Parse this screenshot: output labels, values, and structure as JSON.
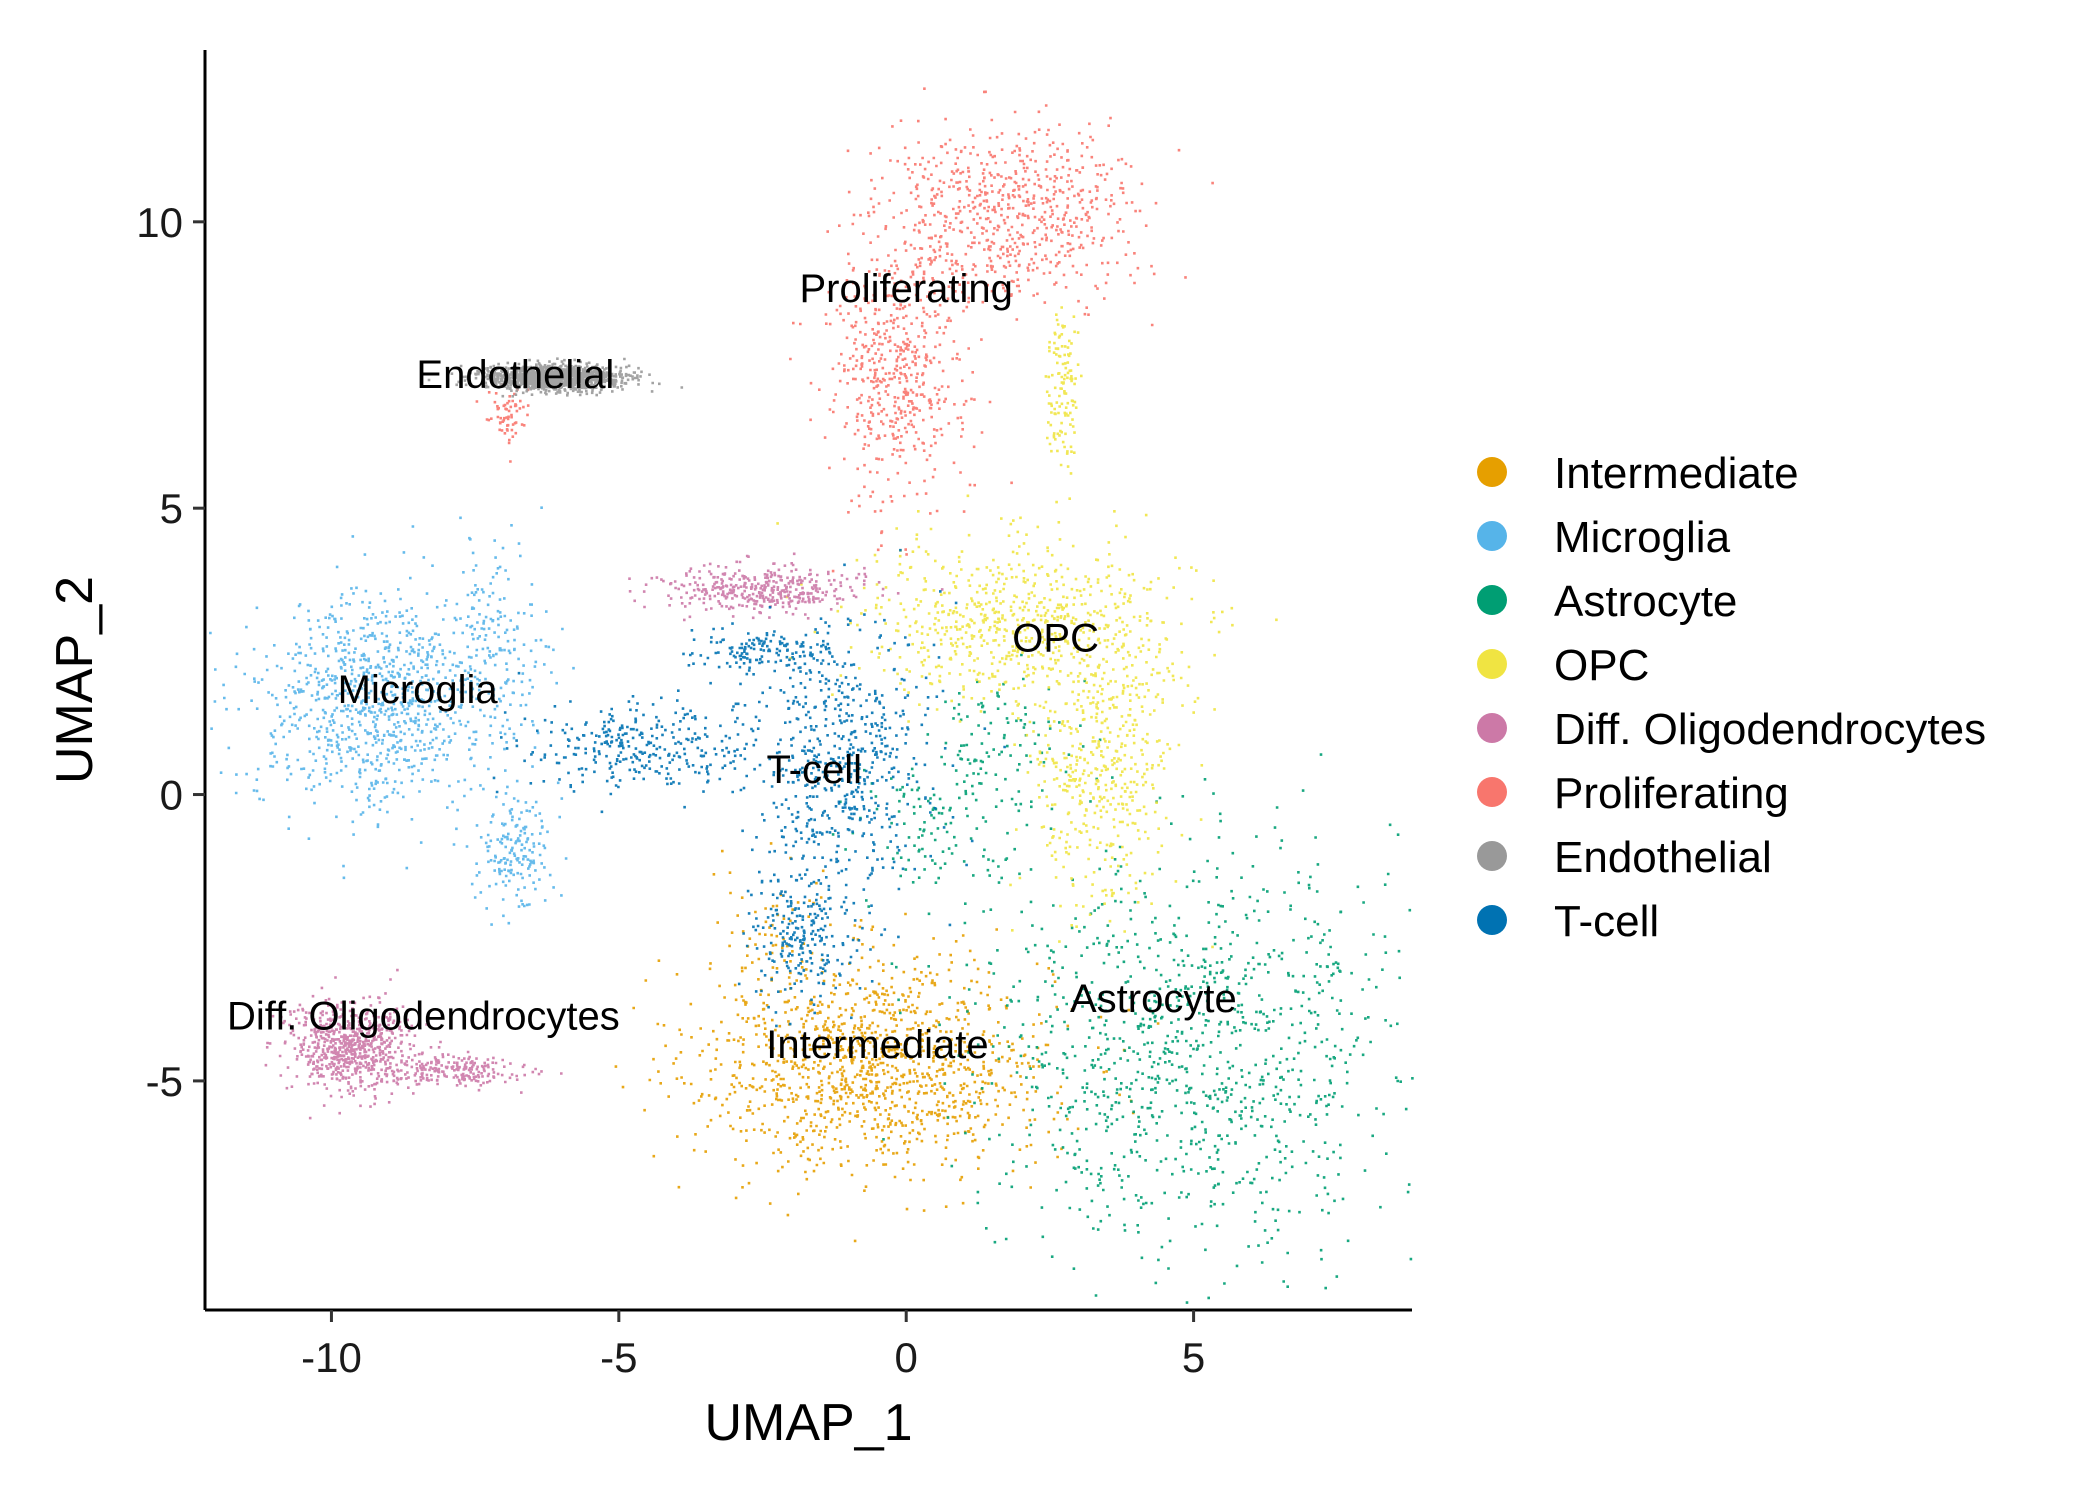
{
  "chart_data": {
    "type": "scatter",
    "title": "",
    "xlabel": "UMAP_1",
    "ylabel": "UMAP_2",
    "xlim": [
      -12.2,
      8.8
    ],
    "ylim": [
      -9,
      13
    ],
    "x_ticks": [
      -10,
      -5,
      0,
      5
    ],
    "y_ticks": [
      -5,
      0,
      5,
      10
    ],
    "x_tick_labels": [
      "-10",
      "-5",
      "0",
      "5"
    ],
    "y_tick_labels": [
      "-5",
      "0",
      "5",
      "10"
    ],
    "grid": false,
    "legend_position": "right",
    "series": [
      {
        "name": "Intermediate",
        "color": "#E69F00",
        "label": "Intermediate",
        "label_x": -0.5,
        "label_y": -4.6,
        "regions": [
          [
            -0.6,
            -4.7,
            2.8,
            1.7,
            0.95
          ],
          [
            -2.3,
            -2.5,
            1.0,
            1.3,
            0.05
          ]
        ]
      },
      {
        "name": "Microglia",
        "color": "#56B4E9",
        "label": "Microglia",
        "label_x": -8.5,
        "label_y": 1.6,
        "regions": [
          [
            -9.3,
            1.6,
            1.9,
            1.7,
            0.72
          ],
          [
            -7.2,
            2.6,
            0.8,
            1.6,
            0.14
          ],
          [
            -6.8,
            -0.9,
            0.6,
            1.0,
            0.14
          ]
        ]
      },
      {
        "name": "Astrocyte",
        "color": "#009E73",
        "label": "Astrocyte",
        "label_x": 4.3,
        "label_y": -3.8,
        "regions": [
          [
            4.9,
            -4.4,
            3.3,
            3.1,
            0.83
          ],
          [
            1.6,
            0.9,
            1.2,
            1.2,
            0.09
          ],
          [
            0.5,
            -0.6,
            1.4,
            0.9,
            0.08
          ]
        ]
      },
      {
        "name": "OPC",
        "color": "#F0E442",
        "label": "OPC",
        "label_x": 2.6,
        "label_y": 2.5,
        "regions": [
          [
            2.0,
            3.0,
            2.6,
            1.3,
            0.55
          ],
          [
            3.4,
            0.4,
            1.1,
            2.1,
            0.35
          ],
          [
            2.7,
            7.0,
            0.25,
            1.4,
            0.1
          ]
        ]
      },
      {
        "name": "Diff. Oligodendrocytes",
        "color": "#CC79A7",
        "label": "Diff. Oligodendrocytes",
        "label_x": -8.4,
        "label_y": -4.1,
        "regions": [
          [
            -9.7,
            -4.4,
            1.0,
            0.7,
            0.55
          ],
          [
            -7.8,
            -4.8,
            1.1,
            0.25,
            0.15
          ],
          [
            -2.6,
            3.6,
            1.6,
            0.35,
            0.3
          ]
        ]
      },
      {
        "name": "Proliferating",
        "color": "#F8766D",
        "label": "Proliferating",
        "label_x": 0.0,
        "label_y": 8.6,
        "regions": [
          [
            1.7,
            10.2,
            2.1,
            1.3,
            0.55
          ],
          [
            -0.2,
            7.3,
            1.1,
            1.9,
            0.4
          ],
          [
            -7.0,
            6.6,
            0.3,
            0.6,
            0.05
          ]
        ]
      },
      {
        "name": "Endothelial",
        "color": "#999999",
        "label": "Endothelial",
        "label_x": -6.8,
        "label_y": 7.1,
        "regions": [
          [
            -6.2,
            7.3,
            1.1,
            0.2,
            1.0
          ]
        ]
      },
      {
        "name": "T-cell",
        "color": "#0072B2",
        "label": "T-cell",
        "label_x": -1.6,
        "label_y": 0.2,
        "regions": [
          [
            -1.2,
            0.6,
            1.4,
            2.2,
            0.45
          ],
          [
            -4.6,
            0.8,
            1.9,
            0.7,
            0.25
          ],
          [
            -1.8,
            -2.4,
            0.9,
            1.1,
            0.18
          ],
          [
            -2.4,
            2.5,
            1.2,
            0.35,
            0.12
          ]
        ]
      }
    ]
  }
}
